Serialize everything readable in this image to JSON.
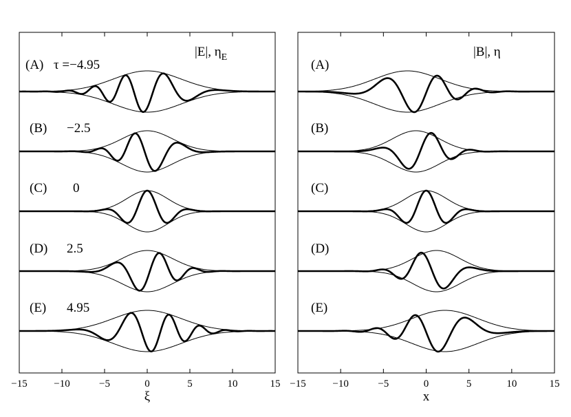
{
  "chart_data": [
    {
      "type": "line",
      "panel": "left",
      "header": "|E|, η",
      "header_subscript": "E",
      "xlabel": "ξ",
      "ylabel": "",
      "xlim": [
        -15,
        15
      ],
      "xticks": [
        -15,
        -10,
        -5,
        0,
        5,
        10,
        15
      ],
      "xtick_labels": [
        "−15",
        "−10",
        "−5",
        "0",
        "5",
        "10",
        "15"
      ],
      "grid": false,
      "legend": "none",
      "subplots": [
        {
          "label": "(A)",
          "tau_text": "τ =−4.95",
          "tau": -4.95,
          "envelope_center": 0,
          "envelope_width": 5.6,
          "carrier_center": 0,
          "carrier_shift": -2.6,
          "carrier_wavelength": 4.3
        },
        {
          "label": "(B)",
          "tau_text": "−2.5",
          "tau": -2.5,
          "envelope_center": 0,
          "envelope_width": 4.2,
          "carrier_center": 0,
          "carrier_shift": -1.5,
          "carrier_wavelength": 4.8
        },
        {
          "label": "(C)",
          "tau_text": "0",
          "tau": 0,
          "envelope_center": 0,
          "envelope_width": 3.4,
          "carrier_center": 0,
          "carrier_shift": 0,
          "carrier_wavelength": 5.2
        },
        {
          "label": "(D)",
          "tau_text": "2.5",
          "tau": 2.5,
          "envelope_center": 0,
          "envelope_width": 4.2,
          "carrier_center": 0,
          "carrier_shift": 1.5,
          "carrier_wavelength": 4.8
        },
        {
          "label": "(E)",
          "tau_text": "4.95",
          "tau": 4.95,
          "envelope_center": 0,
          "envelope_width": 5.6,
          "carrier_center": 0,
          "carrier_shift": 2.6,
          "carrier_wavelength": 4.3
        }
      ]
    },
    {
      "type": "line",
      "panel": "right",
      "header": "|B|, η",
      "header_subscript": "",
      "xlabel": "x",
      "ylabel": "",
      "xlim": [
        -15,
        15
      ],
      "xticks": [
        -15,
        -10,
        -5,
        0,
        5,
        10,
        15
      ],
      "xtick_labels": [
        "−15",
        "−10",
        "−5",
        "0",
        "5",
        "10",
        "15"
      ],
      "grid": false,
      "legend": "none",
      "subplots": [
        {
          "label": "(A)",
          "tau_text": "",
          "tau": -4.95,
          "envelope_center": -2.2,
          "envelope_width": 5.4,
          "carrier_center": -1.3,
          "carrier_shift": 1.4,
          "carrier_wavelength": 5.6
        },
        {
          "label": "(B)",
          "tau_text": "",
          "tau": -2.5,
          "envelope_center": -1.2,
          "envelope_width": 3.9,
          "carrier_center": -0.6,
          "carrier_shift": 0.7,
          "carrier_wavelength": 5.6
        },
        {
          "label": "(C)",
          "tau_text": "",
          "tau": 0,
          "envelope_center": 0,
          "envelope_width": 3.4,
          "carrier_center": 0,
          "carrier_shift": 0,
          "carrier_wavelength": 5.2
        },
        {
          "label": "(D)",
          "tau_text": "",
          "tau": 2.5,
          "envelope_center": 1.2,
          "envelope_width": 3.9,
          "carrier_center": 0.6,
          "carrier_shift": -0.7,
          "carrier_wavelength": 5.6
        },
        {
          "label": "(E)",
          "tau_text": "",
          "tau": 4.95,
          "envelope_center": 2.2,
          "envelope_width": 5.4,
          "carrier_center": 1.3,
          "carrier_shift": -1.4,
          "carrier_wavelength": 5.6
        }
      ]
    }
  ]
}
